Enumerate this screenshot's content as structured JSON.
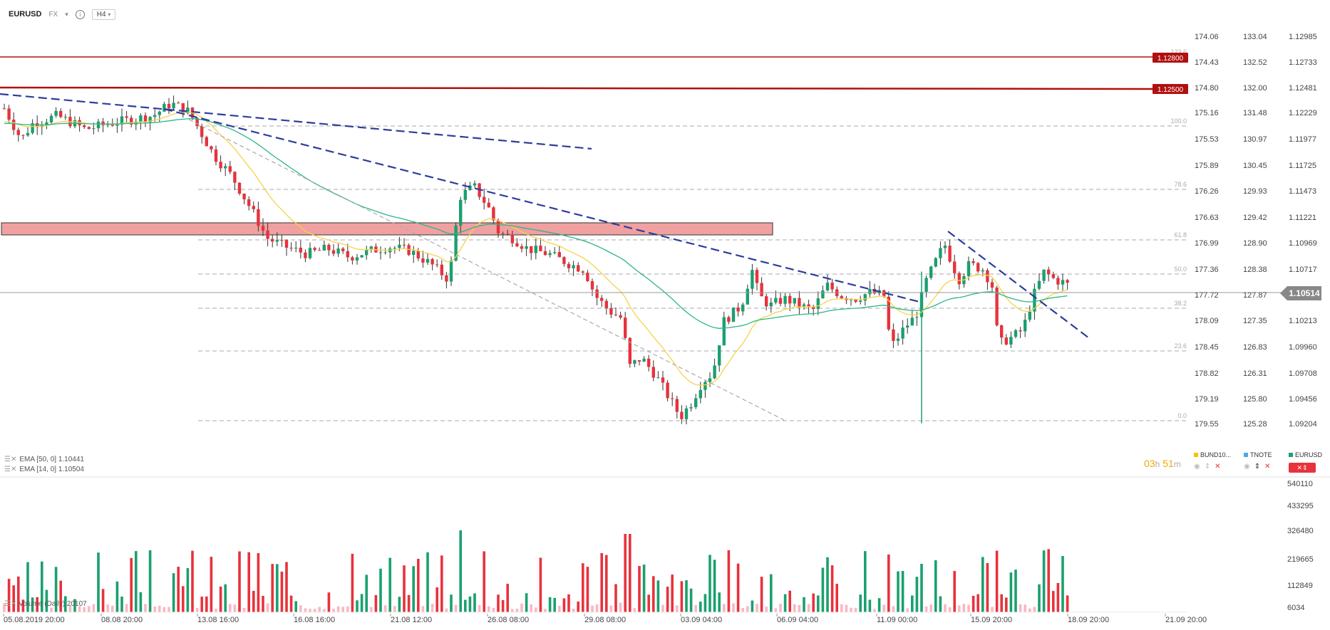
{
  "header": {
    "symbol": "EURUSD",
    "market": "FX",
    "timeframe": "H4"
  },
  "axes": {
    "col1": [
      "174.06",
      "174.43",
      "174.80",
      "175.16",
      "175.53",
      "175.89",
      "176.26",
      "176.63",
      "176.99",
      "177.36",
      "177.72",
      "178.09",
      "178.45",
      "178.82",
      "179.19",
      "179.55"
    ],
    "col2": [
      "133.04",
      "132.52",
      "132.00",
      "131.48",
      "130.97",
      "130.45",
      "129.93",
      "129.42",
      "128.90",
      "128.38",
      "127.87",
      "127.35",
      "126.83",
      "126.31",
      "125.80",
      "125.28"
    ],
    "col3": [
      "1.12985",
      "1.12733",
      "1.12481",
      "1.12229",
      "1.11977",
      "1.11725",
      "1.11473",
      "1.11221",
      "1.10969",
      "1.10717",
      "1.10465",
      "1.10213",
      "1.09960",
      "1.09708",
      "1.09456",
      "1.09204"
    ],
    "volume": [
      "540110",
      "433295",
      "326480",
      "219665",
      "112849",
      "6034"
    ],
    "time": [
      "05.08.2019  20:00",
      "08.08  20:00",
      "13.08  16:00",
      "16.08  16:00",
      "21.08  12:00",
      "26.08  08:00",
      "29.08  08:00",
      "03.09  04:00",
      "06.09  04:00",
      "11.09  00:00",
      "15.09  20:00",
      "18.09  20:00",
      "21.09  20:00"
    ]
  },
  "price": {
    "current": "1.10514",
    "level_a": "1.12800",
    "level_b": "1.12500"
  },
  "fib_levels": [
    "123.6",
    "100.0",
    "78.6",
    "61.8",
    "50.0",
    "38.2",
    "23.6",
    "0.0"
  ],
  "indicators": {
    "ema50": "EMA  [50, 0]  1.10441",
    "ema14": "EMA  [14, 0]  1.10504",
    "volume": "Volume (Daily)  20107"
  },
  "timer": {
    "h": "03",
    "h_unit": "h",
    "m": "51",
    "m_unit": "m"
  },
  "legend": [
    {
      "name": "BUND10...",
      "color": "#f5c400"
    },
    {
      "name": "TNOTE",
      "color": "#4aa8e8"
    },
    {
      "name": "EURUSD",
      "color": "#1aa06e"
    }
  ],
  "colors": {
    "bull": "#1aa06e",
    "bear": "#e8323c",
    "trendline": "#2c3e9c",
    "ema14": "#f5d34a",
    "ema50": "#2bb58a",
    "zone": "#f0a0a0",
    "level": "#b01010"
  }
}
